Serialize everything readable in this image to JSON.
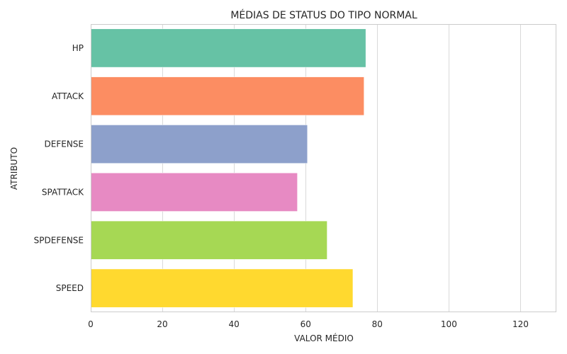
{
  "chart_data": {
    "type": "bar",
    "orientation": "horizontal",
    "title": "MÉDIAS DE STATUS DO TIPO NORMAL",
    "xlabel": "VALOR MÉDIO",
    "ylabel": "ATRIBUTO",
    "categories": [
      "HP",
      "ATTACK",
      "DEFENSE",
      "SPATTACK",
      "SPDEFENSE",
      "SPEED"
    ],
    "values": [
      76.7,
      76.2,
      60.4,
      57.6,
      65.9,
      73.1
    ],
    "colors": [
      "#66c2a5",
      "#fc8d62",
      "#8da0cb",
      "#e78ac3",
      "#a6d854",
      "#ffd92f"
    ],
    "xlim": [
      0,
      130
    ],
    "xticks": [
      0,
      20,
      40,
      60,
      80,
      100,
      120
    ],
    "grid": "vertical"
  }
}
